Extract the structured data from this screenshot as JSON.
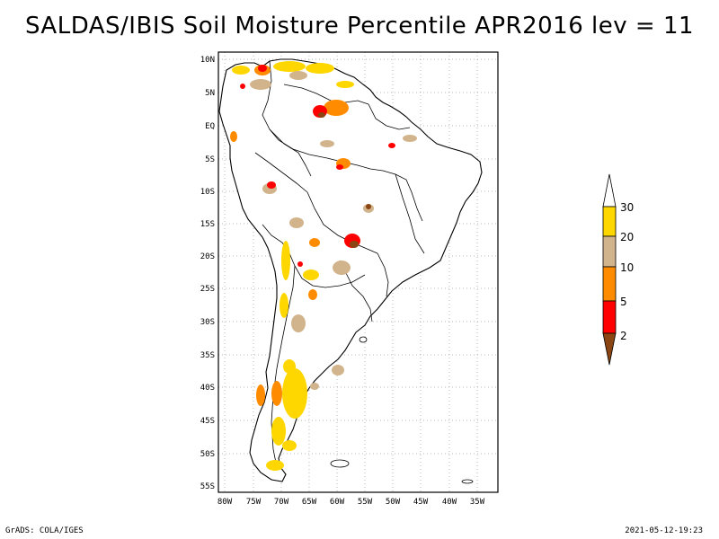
{
  "title": "SALDAS/IBIS Soil Moisture Percentile APR2016 lev = 11",
  "map": {
    "lat_labels": [
      "10N",
      "5N",
      "EQ",
      "5S",
      "10S",
      "15S",
      "20S",
      "25S",
      "30S",
      "35S",
      "40S",
      "45S",
      "50S",
      "55S"
    ],
    "lon_labels": [
      "80W",
      "75W",
      "70W",
      "65W",
      "60W",
      "55W",
      "50W",
      "45W",
      "40W",
      "35W"
    ],
    "grid": true
  },
  "colorbar": {
    "labels": [
      "2",
      "5",
      "10",
      "20",
      "30"
    ],
    "colors": {
      "below_2": "#8b4513",
      "2_5": "#ff0000",
      "5_10": "#ff8c00",
      "10_20": "#d2b48c",
      "20_30": "#ffd700",
      "above_30": "#ffffff"
    }
  },
  "footer": {
    "left": "GrADS: COLA/IGES",
    "right": "2021-05-12-19:23"
  }
}
